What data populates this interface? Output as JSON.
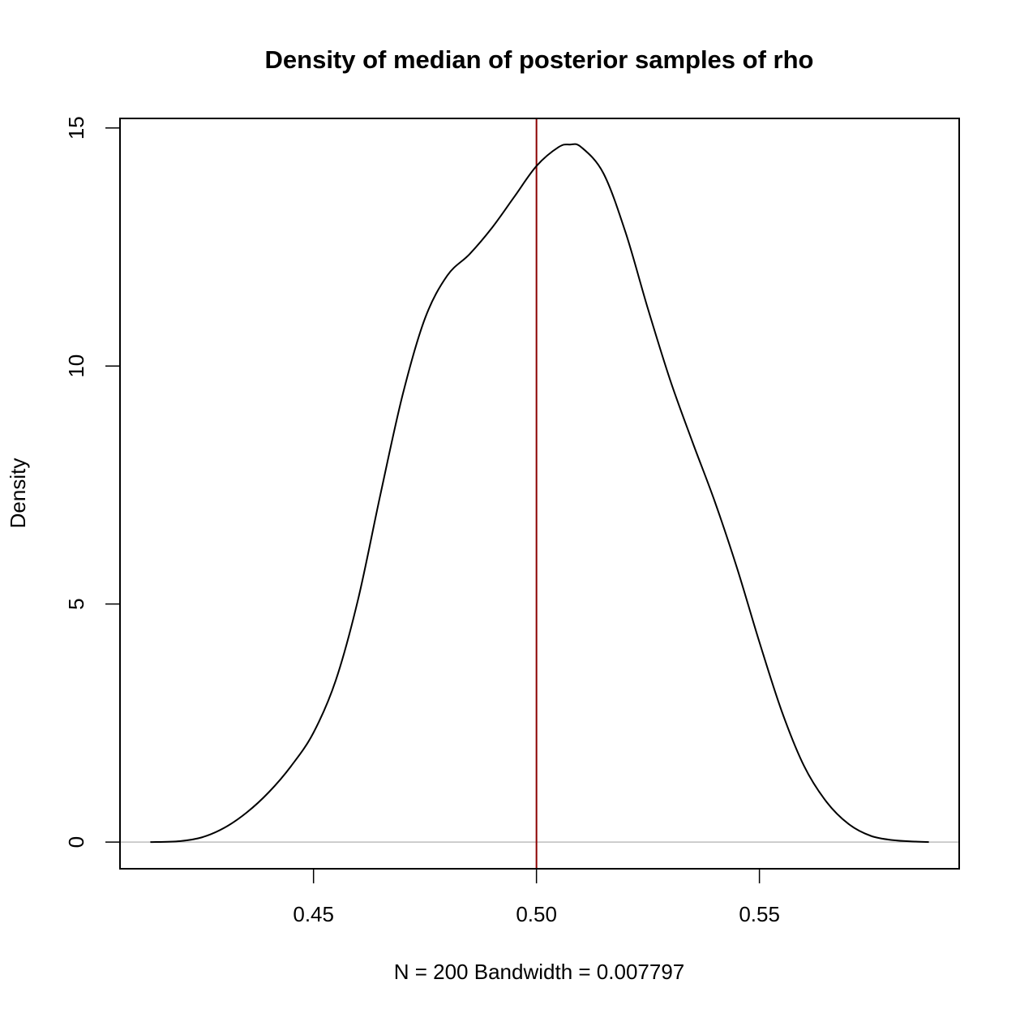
{
  "chart_data": {
    "type": "line",
    "title": "Density of median of posterior samples of rho",
    "xlabel": "N = 200   Bandwidth = 0.007797",
    "ylabel": "Density",
    "xlim": [
      0.4066,
      0.5948
    ],
    "ylim": [
      -0.56,
      15.2
    ],
    "x_ticks": [
      {
        "value": 0.45,
        "label": "0.45"
      },
      {
        "value": 0.5,
        "label": "0.50"
      },
      {
        "value": 0.55,
        "label": "0.55"
      }
    ],
    "y_ticks": [
      {
        "value": 0,
        "label": "0"
      },
      {
        "value": 5,
        "label": "5"
      },
      {
        "value": 10,
        "label": "10"
      },
      {
        "value": 15,
        "label": "15"
      }
    ],
    "series": [
      {
        "line_color": "#000000",
        "x": [
          0.4134,
          0.42,
          0.425,
          0.43,
          0.435,
          0.44,
          0.445,
          0.45,
          0.455,
          0.46,
          0.465,
          0.47,
          0.475,
          0.48,
          0.485,
          0.49,
          0.495,
          0.5,
          0.505,
          0.5075,
          0.51,
          0.515,
          0.52,
          0.525,
          0.53,
          0.535,
          0.54,
          0.545,
          0.55,
          0.555,
          0.56,
          0.565,
          0.57,
          0.575,
          0.58,
          0.585,
          0.588
        ],
        "y": [
          0.0,
          0.02,
          0.1,
          0.3,
          0.62,
          1.05,
          1.6,
          2.3,
          3.4,
          5.1,
          7.3,
          9.4,
          11.0,
          11.9,
          12.35,
          12.9,
          13.55,
          14.2,
          14.6,
          14.65,
          14.6,
          14.05,
          12.8,
          11.2,
          9.7,
          8.4,
          7.15,
          5.75,
          4.2,
          2.75,
          1.6,
          0.85,
          0.38,
          0.13,
          0.04,
          0.01,
          0.0
        ]
      }
    ],
    "reference_line": {
      "x": 0.5,
      "color": "#8b0000"
    },
    "zero_line": {
      "y": 0,
      "color": "#bebebe"
    },
    "grid": false,
    "legend": false
  }
}
